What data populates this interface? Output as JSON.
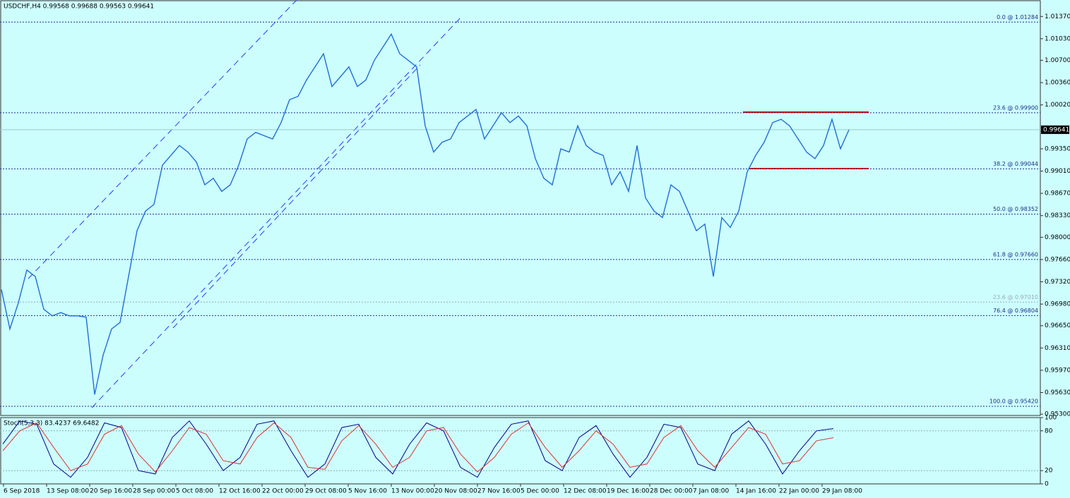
{
  "chart_data": [
    {
      "type": "line",
      "title": "USDCHF,H4  0.99568 0.99688 0.99563 0.99641",
      "ylim": [
        0.9528,
        1.0161
      ],
      "yticks": [
        {
          "value": 1.0137,
          "label": "1.01370"
        },
        {
          "value": 1.0103,
          "label": "1.01030"
        },
        {
          "value": 1.007,
          "label": "1.00700"
        },
        {
          "value": 1.0036,
          "label": "1.00360"
        },
        {
          "value": 1.0002,
          "label": "1.00020"
        },
        {
          "value": 0.9935,
          "label": "0.99350"
        },
        {
          "value": 0.9901,
          "label": "0.99010"
        },
        {
          "value": 0.9867,
          "label": "0.98670"
        },
        {
          "value": 0.9833,
          "label": "0.98330"
        },
        {
          "value": 0.98,
          "label": "0.98000"
        },
        {
          "value": 0.9766,
          "label": "0.97660"
        },
        {
          "value": 0.9732,
          "label": "0.97320"
        },
        {
          "value": 0.9698,
          "label": "0.96980"
        },
        {
          "value": 0.9665,
          "label": "0.96650"
        },
        {
          "value": 0.9631,
          "label": "0.96310"
        },
        {
          "value": 0.9597,
          "label": "0.95970"
        },
        {
          "value": 0.9563,
          "label": "0.95630"
        },
        {
          "value": 0.953,
          "label": "0.95300"
        }
      ],
      "current_price": 0.99641,
      "levels": [
        {
          "value": 1.01284,
          "label": "0.0 @ 1.01284"
        },
        {
          "value": 0.999,
          "label": "23.6 @ 0.99900"
        },
        {
          "value": 0.99044,
          "label": "38.2 @ 0.99044"
        },
        {
          "value": 0.98352,
          "label": "50.0 @ 0.98352"
        },
        {
          "value": 0.9766,
          "label": "61.8 @ 0.97660"
        },
        {
          "value": 0.9701,
          "label": "23.6 @ 0.97010"
        },
        {
          "value": 0.96804,
          "label": "76.4 @ 0.96804"
        },
        {
          "value": 0.9542,
          "label": "100.0 @ 0.95420"
        }
      ],
      "time_labels": [
        "6 Sep 2018",
        "13 Sep 08:00",
        "20 Sep 16:00",
        "28 Sep 00:00",
        "5 Oct 08:00",
        "12 Oct 16:00",
        "22 Oct 00:00",
        "29 Oct 08:00",
        "5 Nov 16:00",
        "13 Nov 00:00",
        "20 Nov 08:00",
        "27 Nov 16:00",
        "5 Dec 00:00",
        "12 Dec 08:00",
        "19 Dec 16:00",
        "28 Dec 00:00",
        "7 Jan 08:00",
        "14 Jan 16:00",
        "22 Jan 00:00",
        "29 Jan 08:00"
      ],
      "series": [
        {
          "color": "#1e6fd8",
          "values": [
            0.972,
            0.966,
            0.97,
            0.975,
            0.974,
            0.969,
            0.968,
            0.9685,
            0.968,
            0.968,
            0.9678,
            0.956,
            0.962,
            0.966,
            0.967,
            0.974,
            0.981,
            0.984,
            0.985,
            0.991,
            0.9925,
            0.994,
            0.993,
            0.9915,
            0.988,
            0.989,
            0.987,
            0.988,
            0.991,
            0.995,
            0.996,
            0.9955,
            0.995,
            0.9975,
            1.001,
            1.0015,
            1.004,
            1.006,
            1.008,
            1.003,
            1.0045,
            1.006,
            1.003,
            1.004,
            1.007,
            1.009,
            1.011,
            1.008,
            1.007,
            1.006,
            0.997,
            0.993,
            0.9945,
            0.995,
            0.9975,
            0.9985,
            0.9995,
            0.995,
            0.997,
            0.999,
            0.9975,
            0.9985,
            0.997,
            0.992,
            0.989,
            0.988,
            0.9935,
            0.993,
            0.997,
            0.994,
            0.993,
            0.9925,
            0.988,
            0.99,
            0.987,
            0.994,
            0.986,
            0.984,
            0.983,
            0.988,
            0.987,
            0.984,
            0.981,
            0.982,
            0.974,
            0.983,
            0.9815,
            0.984,
            0.99,
            0.9925,
            0.9945,
            0.9975,
            0.998,
            0.997,
            0.995,
            0.993,
            0.992,
            0.994,
            0.998,
            0.9935,
            0.9964
          ]
        }
      ]
    },
    {
      "type": "line",
      "title": "Stoch(5,3,3) 83.4237 69.6482",
      "ylim": [
        0,
        100
      ],
      "yticks": [
        0,
        20,
        80,
        100
      ],
      "series": [
        {
          "color": "#00008b",
          "values": [
            60,
            95,
            90,
            30,
            10,
            40,
            92,
            85,
            20,
            15,
            70,
            95,
            60,
            20,
            40,
            90,
            95,
            50,
            10,
            30,
            85,
            90,
            40,
            15,
            60,
            92,
            80,
            25,
            10,
            55,
            90,
            95,
            35,
            20,
            70,
            88,
            45,
            10,
            40,
            90,
            85,
            30,
            20,
            75,
            95,
            60,
            15,
            50,
            80,
            83.4237
          ]
        },
        {
          "color": "#e03030",
          "values": [
            50,
            80,
            92,
            55,
            20,
            30,
            75,
            88,
            45,
            18,
            50,
            85,
            75,
            35,
            30,
            70,
            92,
            70,
            25,
            22,
            65,
            88,
            60,
            25,
            40,
            80,
            85,
            45,
            18,
            40,
            75,
            92,
            55,
            25,
            50,
            80,
            60,
            25,
            30,
            70,
            88,
            50,
            25,
            55,
            85,
            75,
            30,
            35,
            65,
            69.6482
          ]
        }
      ]
    }
  ]
}
